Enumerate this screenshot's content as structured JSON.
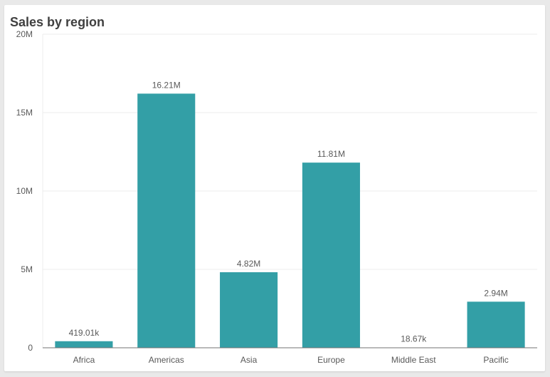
{
  "colors": {
    "bar": "#339fa6",
    "grid": "#ececec",
    "axis": "#737373",
    "background": "#ffffff"
  },
  "chart_data": {
    "type": "bar",
    "title": "Sales by region",
    "xlabel": "",
    "ylabel": "",
    "categories": [
      "Africa",
      "Americas",
      "Asia",
      "Europe",
      "Middle East",
      "Pacific"
    ],
    "values": [
      419010,
      16210000,
      4820000,
      11810000,
      18670,
      2940000
    ],
    "data_labels": [
      "419.01k",
      "16.21M",
      "4.82M",
      "11.81M",
      "18.67k",
      "2.94M"
    ],
    "ylim": [
      0,
      20000000
    ],
    "yticks": [
      0,
      5000000,
      10000000,
      15000000,
      20000000
    ],
    "ytick_labels": [
      "0",
      "5M",
      "10M",
      "15M",
      "20M"
    ],
    "grid": true,
    "legend": "none"
  }
}
